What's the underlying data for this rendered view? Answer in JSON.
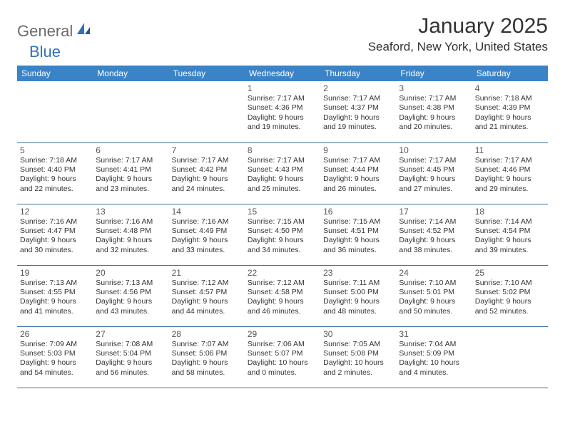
{
  "logo": {
    "part1": "General",
    "part2": "Blue"
  },
  "title": "January 2025",
  "location": "Seaford, New York, United States",
  "colors": {
    "header_bg": "#3b83c7",
    "header_text": "#ffffff",
    "row_border": "#3b6fa3",
    "logo_gray": "#6b6b6b",
    "logo_blue": "#2f71b8"
  },
  "dayHeaders": [
    "Sunday",
    "Monday",
    "Tuesday",
    "Wednesday",
    "Thursday",
    "Friday",
    "Saturday"
  ],
  "weeks": [
    [
      {
        "n": "",
        "sr": "",
        "ss": "",
        "dl1": "",
        "dl2": ""
      },
      {
        "n": "",
        "sr": "",
        "ss": "",
        "dl1": "",
        "dl2": ""
      },
      {
        "n": "",
        "sr": "",
        "ss": "",
        "dl1": "",
        "dl2": ""
      },
      {
        "n": "1",
        "sr": "Sunrise: 7:17 AM",
        "ss": "Sunset: 4:36 PM",
        "dl1": "Daylight: 9 hours",
        "dl2": "and 19 minutes."
      },
      {
        "n": "2",
        "sr": "Sunrise: 7:17 AM",
        "ss": "Sunset: 4:37 PM",
        "dl1": "Daylight: 9 hours",
        "dl2": "and 19 minutes."
      },
      {
        "n": "3",
        "sr": "Sunrise: 7:17 AM",
        "ss": "Sunset: 4:38 PM",
        "dl1": "Daylight: 9 hours",
        "dl2": "and 20 minutes."
      },
      {
        "n": "4",
        "sr": "Sunrise: 7:18 AM",
        "ss": "Sunset: 4:39 PM",
        "dl1": "Daylight: 9 hours",
        "dl2": "and 21 minutes."
      }
    ],
    [
      {
        "n": "5",
        "sr": "Sunrise: 7:18 AM",
        "ss": "Sunset: 4:40 PM",
        "dl1": "Daylight: 9 hours",
        "dl2": "and 22 minutes."
      },
      {
        "n": "6",
        "sr": "Sunrise: 7:17 AM",
        "ss": "Sunset: 4:41 PM",
        "dl1": "Daylight: 9 hours",
        "dl2": "and 23 minutes."
      },
      {
        "n": "7",
        "sr": "Sunrise: 7:17 AM",
        "ss": "Sunset: 4:42 PM",
        "dl1": "Daylight: 9 hours",
        "dl2": "and 24 minutes."
      },
      {
        "n": "8",
        "sr": "Sunrise: 7:17 AM",
        "ss": "Sunset: 4:43 PM",
        "dl1": "Daylight: 9 hours",
        "dl2": "and 25 minutes."
      },
      {
        "n": "9",
        "sr": "Sunrise: 7:17 AM",
        "ss": "Sunset: 4:44 PM",
        "dl1": "Daylight: 9 hours",
        "dl2": "and 26 minutes."
      },
      {
        "n": "10",
        "sr": "Sunrise: 7:17 AM",
        "ss": "Sunset: 4:45 PM",
        "dl1": "Daylight: 9 hours",
        "dl2": "and 27 minutes."
      },
      {
        "n": "11",
        "sr": "Sunrise: 7:17 AM",
        "ss": "Sunset: 4:46 PM",
        "dl1": "Daylight: 9 hours",
        "dl2": "and 29 minutes."
      }
    ],
    [
      {
        "n": "12",
        "sr": "Sunrise: 7:16 AM",
        "ss": "Sunset: 4:47 PM",
        "dl1": "Daylight: 9 hours",
        "dl2": "and 30 minutes."
      },
      {
        "n": "13",
        "sr": "Sunrise: 7:16 AM",
        "ss": "Sunset: 4:48 PM",
        "dl1": "Daylight: 9 hours",
        "dl2": "and 32 minutes."
      },
      {
        "n": "14",
        "sr": "Sunrise: 7:16 AM",
        "ss": "Sunset: 4:49 PM",
        "dl1": "Daylight: 9 hours",
        "dl2": "and 33 minutes."
      },
      {
        "n": "15",
        "sr": "Sunrise: 7:15 AM",
        "ss": "Sunset: 4:50 PM",
        "dl1": "Daylight: 9 hours",
        "dl2": "and 34 minutes."
      },
      {
        "n": "16",
        "sr": "Sunrise: 7:15 AM",
        "ss": "Sunset: 4:51 PM",
        "dl1": "Daylight: 9 hours",
        "dl2": "and 36 minutes."
      },
      {
        "n": "17",
        "sr": "Sunrise: 7:14 AM",
        "ss": "Sunset: 4:52 PM",
        "dl1": "Daylight: 9 hours",
        "dl2": "and 38 minutes."
      },
      {
        "n": "18",
        "sr": "Sunrise: 7:14 AM",
        "ss": "Sunset: 4:54 PM",
        "dl1": "Daylight: 9 hours",
        "dl2": "and 39 minutes."
      }
    ],
    [
      {
        "n": "19",
        "sr": "Sunrise: 7:13 AM",
        "ss": "Sunset: 4:55 PM",
        "dl1": "Daylight: 9 hours",
        "dl2": "and 41 minutes."
      },
      {
        "n": "20",
        "sr": "Sunrise: 7:13 AM",
        "ss": "Sunset: 4:56 PM",
        "dl1": "Daylight: 9 hours",
        "dl2": "and 43 minutes."
      },
      {
        "n": "21",
        "sr": "Sunrise: 7:12 AM",
        "ss": "Sunset: 4:57 PM",
        "dl1": "Daylight: 9 hours",
        "dl2": "and 44 minutes."
      },
      {
        "n": "22",
        "sr": "Sunrise: 7:12 AM",
        "ss": "Sunset: 4:58 PM",
        "dl1": "Daylight: 9 hours",
        "dl2": "and 46 minutes."
      },
      {
        "n": "23",
        "sr": "Sunrise: 7:11 AM",
        "ss": "Sunset: 5:00 PM",
        "dl1": "Daylight: 9 hours",
        "dl2": "and 48 minutes."
      },
      {
        "n": "24",
        "sr": "Sunrise: 7:10 AM",
        "ss": "Sunset: 5:01 PM",
        "dl1": "Daylight: 9 hours",
        "dl2": "and 50 minutes."
      },
      {
        "n": "25",
        "sr": "Sunrise: 7:10 AM",
        "ss": "Sunset: 5:02 PM",
        "dl1": "Daylight: 9 hours",
        "dl2": "and 52 minutes."
      }
    ],
    [
      {
        "n": "26",
        "sr": "Sunrise: 7:09 AM",
        "ss": "Sunset: 5:03 PM",
        "dl1": "Daylight: 9 hours",
        "dl2": "and 54 minutes."
      },
      {
        "n": "27",
        "sr": "Sunrise: 7:08 AM",
        "ss": "Sunset: 5:04 PM",
        "dl1": "Daylight: 9 hours",
        "dl2": "and 56 minutes."
      },
      {
        "n": "28",
        "sr": "Sunrise: 7:07 AM",
        "ss": "Sunset: 5:06 PM",
        "dl1": "Daylight: 9 hours",
        "dl2": "and 58 minutes."
      },
      {
        "n": "29",
        "sr": "Sunrise: 7:06 AM",
        "ss": "Sunset: 5:07 PM",
        "dl1": "Daylight: 10 hours",
        "dl2": "and 0 minutes."
      },
      {
        "n": "30",
        "sr": "Sunrise: 7:05 AM",
        "ss": "Sunset: 5:08 PM",
        "dl1": "Daylight: 10 hours",
        "dl2": "and 2 minutes."
      },
      {
        "n": "31",
        "sr": "Sunrise: 7:04 AM",
        "ss": "Sunset: 5:09 PM",
        "dl1": "Daylight: 10 hours",
        "dl2": "and 4 minutes."
      },
      {
        "n": "",
        "sr": "",
        "ss": "",
        "dl1": "",
        "dl2": ""
      }
    ]
  ]
}
